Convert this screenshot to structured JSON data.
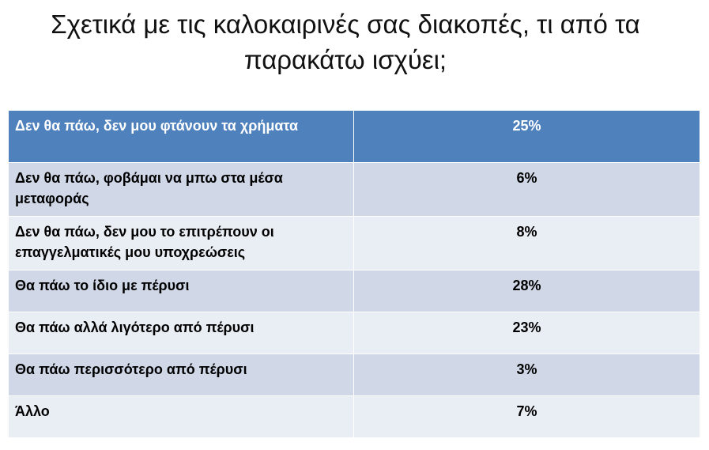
{
  "slide": {
    "title_line1": "Σχετικά με τις καλοκαιρινές σας διακοπές, τι από τα",
    "title_line2": "παρακάτω ισχύει;"
  },
  "table": {
    "rows": [
      {
        "label": "Δεν θα πάω, δεν μου φτάνουν τα χρήματα",
        "value": "25%"
      },
      {
        "label": "Δεν θα πάω, φοβάμαι να μπω στα μέσα μεταφοράς",
        "value": "6%"
      },
      {
        "label": "Δεν θα πάω, δεν μου το επιτρέπουν οι επαγγελματικές μου υποχρεώσεις",
        "value": "8%"
      },
      {
        "label": "Θα πάω το ίδιο με πέρυσι",
        "value": "28%"
      },
      {
        "label": "Θα πάω αλλά λιγότερο από πέρυσι",
        "value": "23%"
      },
      {
        "label": "Θα πάω περισσότερο από πέρυσι",
        "value": "3%"
      },
      {
        "label": "Άλλο",
        "value": "7%"
      }
    ]
  },
  "colors": {
    "header_fill": "#4f81bd",
    "band_dark": "#d0d8e8",
    "band_light": "#e9edf4",
    "header_text": "#ffffff"
  }
}
